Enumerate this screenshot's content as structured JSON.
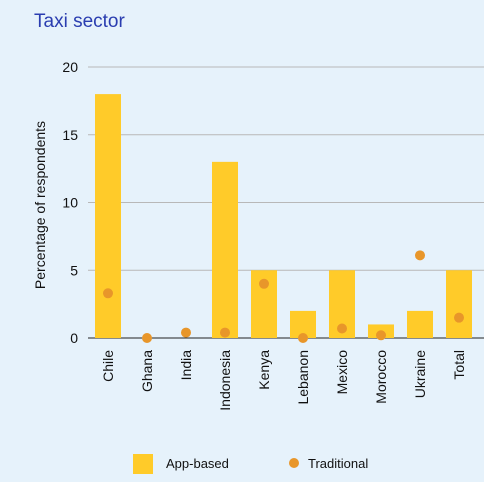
{
  "chart_data": {
    "type": "bar",
    "title": "Taxi sector",
    "ylabel": "Percentage of respondents",
    "xlabel": "",
    "ylim": [
      0,
      20
    ],
    "yticks": [
      0,
      5,
      10,
      15,
      20
    ],
    "grid": true,
    "legend_position": "bottom",
    "categories": [
      "Chile",
      "Ghana",
      "India",
      "Indonesia",
      "Kenya",
      "Lebanon",
      "Mexico",
      "Morocco",
      "Ukraine",
      "Total"
    ],
    "series": [
      {
        "name": "App-based",
        "type": "bar",
        "color": "#ffcb29",
        "values": [
          18,
          0,
          0,
          13,
          5,
          2,
          5,
          1,
          2,
          5
        ]
      },
      {
        "name": "Traditional",
        "type": "scatter",
        "color": "#e8962a",
        "values": [
          3.3,
          0,
          0.4,
          0.4,
          4.0,
          0,
          0.7,
          0.2,
          6.1,
          1.5
        ]
      }
    ]
  }
}
